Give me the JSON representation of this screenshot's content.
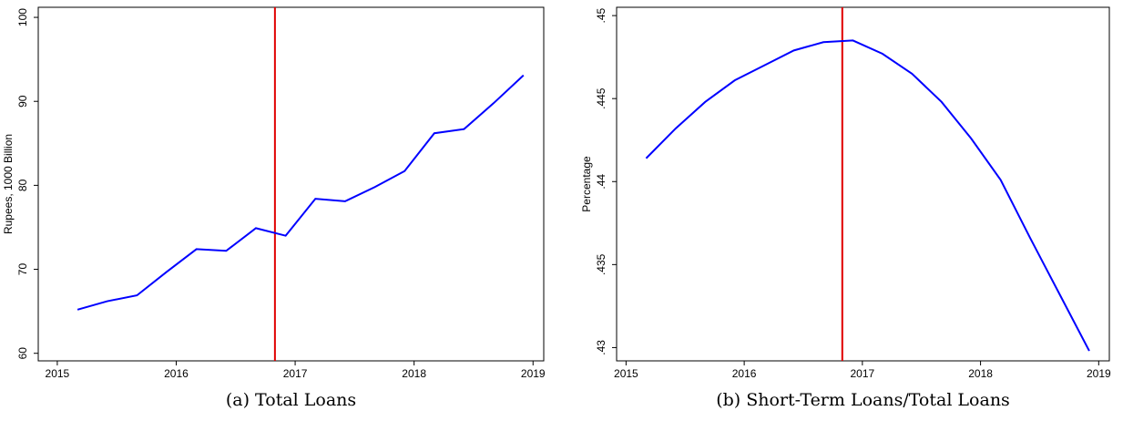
{
  "chart_data": [
    {
      "type": "line",
      "caption": "(a) Total Loans",
      "y_label": "Rupees, 1000 Billion",
      "x": [
        2015.17,
        2015.42,
        2015.67,
        2015.92,
        2016.17,
        2016.42,
        2016.67,
        2016.92,
        2017.17,
        2017.42,
        2017.67,
        2017.92,
        2018.17,
        2018.42,
        2018.67,
        2018.92
      ],
      "series": [
        {
          "color": "#0000ff",
          "values": [
            65.2,
            66.2,
            66.9,
            69.7,
            72.4,
            72.2,
            74.9,
            74.0,
            78.4,
            78.1,
            79.8,
            81.7,
            86.2,
            86.7,
            89.8,
            93.1
          ]
        }
      ],
      "vline": 2016.83,
      "vline_color": "#e00000",
      "xlim": [
        2014.84,
        2019.09
      ],
      "xticks": [
        2015,
        2016,
        2017,
        2018,
        2019
      ],
      "ylim": [
        59.1,
        101.2
      ],
      "yticks": [
        60,
        70,
        80,
        90,
        100
      ]
    },
    {
      "type": "line",
      "caption": "(b) Short-Term Loans/Total Loans",
      "y_label": "Percentage",
      "x": [
        2015.17,
        2015.42,
        2015.67,
        2015.92,
        2016.17,
        2016.42,
        2016.67,
        2016.92,
        2017.17,
        2017.42,
        2017.67,
        2017.92,
        2018.17,
        2018.42,
        2018.67,
        2018.92
      ],
      "series": [
        {
          "color": "#0000ff",
          "values": [
            0.4414,
            0.4432,
            0.4448,
            0.4461,
            0.447,
            0.4479,
            0.4484,
            0.4485,
            0.4477,
            0.4465,
            0.4448,
            0.4426,
            0.4401,
            0.4366,
            0.4332,
            0.4298
          ]
        }
      ],
      "vline": 2016.83,
      "vline_color": "#e00000",
      "xlim": [
        2014.92,
        2019.09
      ],
      "xticks": [
        2015,
        2016,
        2017,
        2018,
        2019
      ],
      "ylim": [
        0.4292,
        0.4505
      ],
      "yticks": [
        {
          "value": 0.43,
          "label": ".43"
        },
        {
          "value": 0.435,
          "label": ".435"
        },
        {
          "value": 0.44,
          "label": ".44"
        },
        {
          "value": 0.445,
          "label": ".445"
        },
        {
          "value": 0.45,
          "label": ".45"
        }
      ]
    }
  ]
}
